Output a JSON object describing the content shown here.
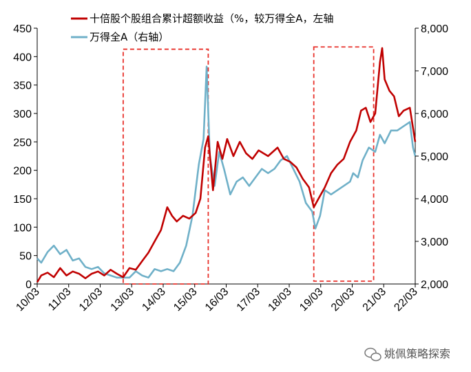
{
  "colors": {
    "excess_return": "#c00000",
    "wind_a": "#6fb0c8",
    "highlight_box": "#e8302a",
    "axis": "#000000"
  },
  "watermark": {
    "icon": "wechat-icon",
    "text": "姚佩策略探索"
  },
  "chart_data": {
    "type": "line",
    "legend": [
      {
        "label": "十倍股个股组合累计超额收益（%，较万得全A，左轴",
        "color": "#c00000"
      },
      {
        "label": "万得全A（右轴）",
        "color": "#6fb0c8"
      }
    ],
    "x_ticks": [
      "10/03",
      "11/03",
      "12/03",
      "13/03",
      "14/03",
      "15/03",
      "16/03",
      "17/03",
      "18/03",
      "19/03",
      "20/03",
      "21/03",
      "22/03"
    ],
    "y_left": {
      "min": 0,
      "max": 450,
      "ticks": [
        0,
        50,
        100,
        150,
        200,
        250,
        300,
        350,
        400,
        450
      ]
    },
    "y_right": {
      "min": 2000,
      "max": 8000,
      "ticks": [
        "2,000",
        "3,000",
        "4,000",
        "5,000",
        "6,000",
        "7,000",
        "8,000"
      ],
      "tick_values": [
        2000,
        3000,
        4000,
        5000,
        6000,
        7000,
        8000
      ]
    },
    "highlight_periods": [
      {
        "x_start": 2012.9,
        "x_end": 2015.6,
        "y_left_low": 0,
        "y_left_high": 413
      },
      {
        "x_start": 2018.95,
        "x_end": 2020.85,
        "y_left_low": 5,
        "y_left_high": 417
      }
    ],
    "series": [
      {
        "name": "十倍股个股组合累计超额收益（%，较万得全A，左轴",
        "axis": "left",
        "x": [
          2010.17,
          2010.3,
          2010.5,
          2010.7,
          2010.9,
          2011.1,
          2011.3,
          2011.5,
          2011.7,
          2011.9,
          2012.1,
          2012.3,
          2012.5,
          2012.7,
          2012.9,
          2013.1,
          2013.3,
          2013.5,
          2013.7,
          2013.9,
          2014.1,
          2014.3,
          2014.45,
          2014.6,
          2014.8,
          2015.0,
          2015.2,
          2015.35,
          2015.5,
          2015.6,
          2015.75,
          2015.9,
          2016.05,
          2016.2,
          2016.4,
          2016.6,
          2016.8,
          2017.0,
          2017.2,
          2017.5,
          2017.8,
          2018.0,
          2018.2,
          2018.4,
          2018.6,
          2018.8,
          2018.95,
          2019.1,
          2019.3,
          2019.5,
          2019.7,
          2019.9,
          2020.1,
          2020.3,
          2020.45,
          2020.6,
          2020.75,
          2020.9,
          2021.05,
          2021.12,
          2021.2,
          2021.35,
          2021.5,
          2021.65,
          2021.8,
          2022.0,
          2022.17
        ],
        "y": [
          3,
          15,
          20,
          12,
          28,
          15,
          22,
          18,
          10,
          18,
          22,
          15,
          25,
          18,
          12,
          28,
          25,
          40,
          55,
          75,
          95,
          135,
          120,
          110,
          120,
          115,
          125,
          150,
          240,
          260,
          165,
          250,
          220,
          255,
          225,
          250,
          230,
          220,
          235,
          225,
          240,
          220,
          215,
          205,
          185,
          170,
          135,
          150,
          170,
          195,
          210,
          220,
          250,
          270,
          305,
          310,
          285,
          300,
          390,
          415,
          360,
          340,
          330,
          295,
          305,
          310,
          250
        ]
      },
      {
        "name": "万得全A（右轴）",
        "axis": "right",
        "x": [
          2010.17,
          2010.3,
          2010.5,
          2010.7,
          2010.9,
          2011.1,
          2011.3,
          2011.5,
          2011.7,
          2011.9,
          2012.1,
          2012.3,
          2012.5,
          2012.7,
          2012.9,
          2013.1,
          2013.3,
          2013.5,
          2013.7,
          2013.9,
          2014.1,
          2014.3,
          2014.5,
          2014.7,
          2014.9,
          2015.1,
          2015.3,
          2015.45,
          2015.55,
          2015.65,
          2015.8,
          2015.95,
          2016.1,
          2016.3,
          2016.5,
          2016.7,
          2016.9,
          2017.1,
          2017.3,
          2017.5,
          2017.7,
          2017.9,
          2018.1,
          2018.3,
          2018.5,
          2018.7,
          2018.9,
          2019.0,
          2019.15,
          2019.3,
          2019.5,
          2019.7,
          2019.9,
          2020.1,
          2020.2,
          2020.35,
          2020.5,
          2020.7,
          2020.9,
          2021.05,
          2021.2,
          2021.4,
          2021.6,
          2021.8,
          2022.0,
          2022.1,
          2022.17
        ],
        "y": [
          2600,
          2500,
          2750,
          2900,
          2700,
          2800,
          2550,
          2600,
          2400,
          2350,
          2400,
          2250,
          2200,
          2150,
          2150,
          2150,
          2300,
          2200,
          2150,
          2350,
          2300,
          2350,
          2300,
          2500,
          2900,
          3600,
          4800,
          5400,
          7100,
          5000,
          4300,
          5100,
          4700,
          4100,
          4400,
          4500,
          4300,
          4500,
          4700,
          4600,
          4700,
          4900,
          5000,
          4700,
          4400,
          3900,
          3700,
          3300,
          3600,
          4200,
          4100,
          4200,
          4300,
          4400,
          4600,
          4500,
          4900,
          5200,
          5100,
          5500,
          5300,
          5600,
          5600,
          5700,
          5800,
          5200,
          5000
        ]
      }
    ]
  }
}
